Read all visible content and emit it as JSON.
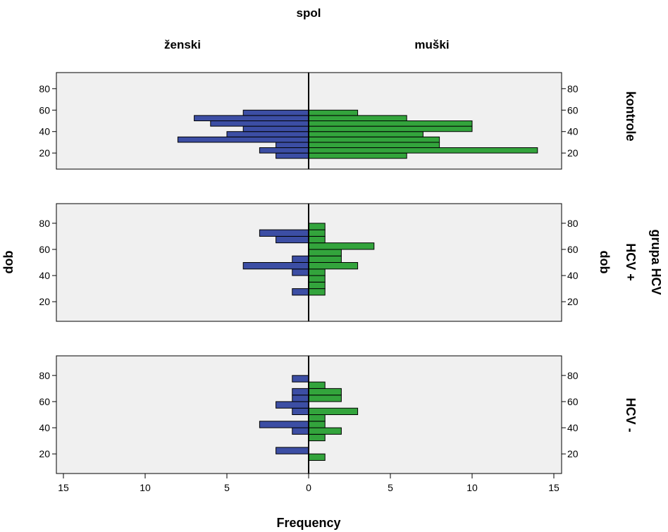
{
  "chart_data": {
    "type": "bar",
    "orientation": "horizontal",
    "layout": "population-pyramid",
    "title": "spol",
    "column_labels": [
      "ženski",
      "muški"
    ],
    "row_group_title": "grupa HCV",
    "row_panel_labels": [
      "kontrole",
      "HCV +",
      "HCV -"
    ],
    "xlabel": "Frequency",
    "ylabel": "dob",
    "xlim": [
      -15,
      15
    ],
    "ylim": [
      5,
      95
    ],
    "x_ticks": [
      -15,
      -10,
      -5,
      0,
      5,
      10,
      15
    ],
    "x_tick_labels": [
      "15",
      "10",
      "5",
      "0",
      "5",
      "10",
      "15"
    ],
    "y_ticks": [
      20,
      40,
      60,
      80
    ],
    "y_tick_labels": [
      "20",
      "40",
      "60",
      "80"
    ],
    "bin_width": 5,
    "colors": {
      "ženski": "#3c4ea4",
      "muški": "#33a43c",
      "panel_bg": "#f0f0f0"
    },
    "panels": [
      {
        "label": "kontrole",
        "bins": [
          17.5,
          22.5,
          27.5,
          32.5,
          37.5,
          42.5,
          47.5,
          52.5,
          57.5,
          62.5
        ],
        "ženski": [
          2,
          3,
          2,
          8,
          5,
          4,
          6,
          7,
          4,
          0
        ],
        "muški": [
          6,
          14,
          8,
          8,
          7,
          10,
          10,
          6,
          3,
          0
        ]
      },
      {
        "label": "HCV +",
        "bins": [
          27.5,
          32.5,
          37.5,
          42.5,
          47.5,
          52.5,
          57.5,
          62.5,
          67.5,
          72.5,
          77.5
        ],
        "ženski": [
          1,
          0,
          0,
          1,
          4,
          1,
          0,
          0,
          2,
          3,
          0
        ],
        "muški": [
          1,
          1,
          1,
          1,
          3,
          2,
          2,
          4,
          1,
          1,
          1
        ]
      },
      {
        "label": "HCV -",
        "bins": [
          17.5,
          22.5,
          27.5,
          32.5,
          37.5,
          42.5,
          47.5,
          52.5,
          57.5,
          62.5,
          67.5,
          72.5,
          77.5
        ],
        "ženski": [
          0,
          2,
          0,
          0,
          1,
          3,
          0,
          1,
          2,
          1,
          1,
          0,
          1
        ],
        "muški": [
          1,
          0,
          0,
          1,
          2,
          1,
          1,
          3,
          0,
          2,
          2,
          1,
          0
        ]
      }
    ]
  }
}
